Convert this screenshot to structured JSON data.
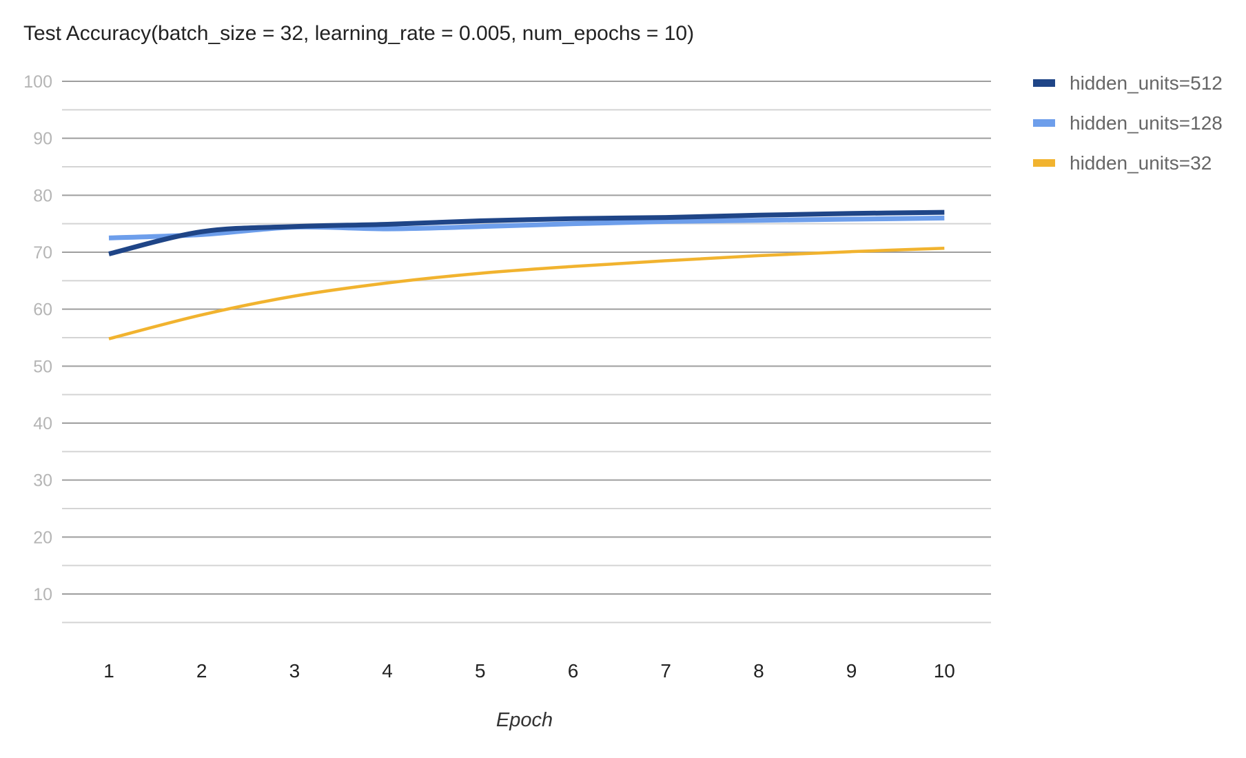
{
  "chart_data": {
    "type": "line",
    "title": "Test Accuracy(batch_size = 32, learning_rate = 0.005, num_epochs = 10)",
    "xlabel": "Epoch",
    "ylabel": "",
    "x": [
      1,
      2,
      3,
      4,
      5,
      6,
      7,
      8,
      9,
      10
    ],
    "yticks": [
      10,
      20,
      30,
      40,
      50,
      60,
      70,
      80,
      90,
      100
    ],
    "ylim": [
      0,
      100
    ],
    "grid": true,
    "minor_grid": true,
    "legend": "right",
    "series": [
      {
        "name": "hidden_units=512",
        "color": "#1f4587",
        "values": [
          69.7,
          73.6,
          74.5,
          74.9,
          75.5,
          75.9,
          76.1,
          76.5,
          76.8,
          77.0
        ]
      },
      {
        "name": "hidden_units=128",
        "color": "#6d9eeb",
        "values": [
          72.5,
          73.1,
          74.4,
          74.1,
          74.5,
          75.0,
          75.4,
          75.6,
          75.8,
          76.0
        ]
      },
      {
        "name": "hidden_units=32",
        "color": "#f1b32f",
        "values": [
          54.8,
          59.0,
          62.3,
          64.6,
          66.3,
          67.5,
          68.5,
          69.4,
          70.1,
          70.7
        ]
      }
    ]
  }
}
